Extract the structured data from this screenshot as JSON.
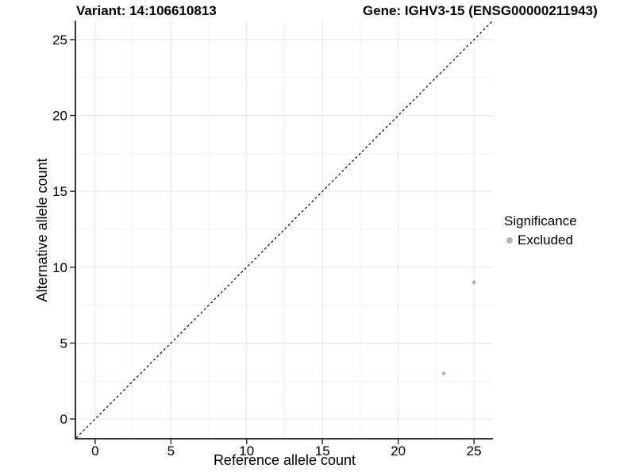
{
  "chart_data": {
    "type": "scatter",
    "title_left": "Variant: 14:106610813",
    "title_right": "Gene: IGHV3-15 (ENSG00000211943)",
    "xlabel": "Reference allele count",
    "ylabel": "Alternative allele count",
    "xlim": [
      -1.25,
      26.25
    ],
    "ylim": [
      -1.25,
      26.25
    ],
    "x_ticks": [
      0,
      5,
      10,
      15,
      20,
      25
    ],
    "y_ticks": [
      0,
      5,
      10,
      15,
      20,
      25
    ],
    "minor_ticks": [
      2.5,
      7.5,
      12.5,
      17.5,
      22.5
    ],
    "grid": true,
    "identity_line": {
      "style": "dashed",
      "from": -1.25,
      "to": 26.25,
      "color": "#000000"
    },
    "series": [
      {
        "name": "Excluded",
        "color": "#b3b3b3",
        "points": [
          {
            "x": 23,
            "y": 3
          },
          {
            "x": 25,
            "y": 9
          }
        ]
      }
    ],
    "legend": {
      "title": "Significance",
      "position": "right",
      "items": [
        {
          "label": "Excluded",
          "color": "#b3b3b3"
        }
      ]
    },
    "colors": {
      "background": "#ffffff",
      "grid_major": "#e4e4e4",
      "grid_minor": "#f1f1f1",
      "axis_line": "#333333",
      "tick_text": "#000000",
      "point": "#b3b3b3"
    }
  }
}
